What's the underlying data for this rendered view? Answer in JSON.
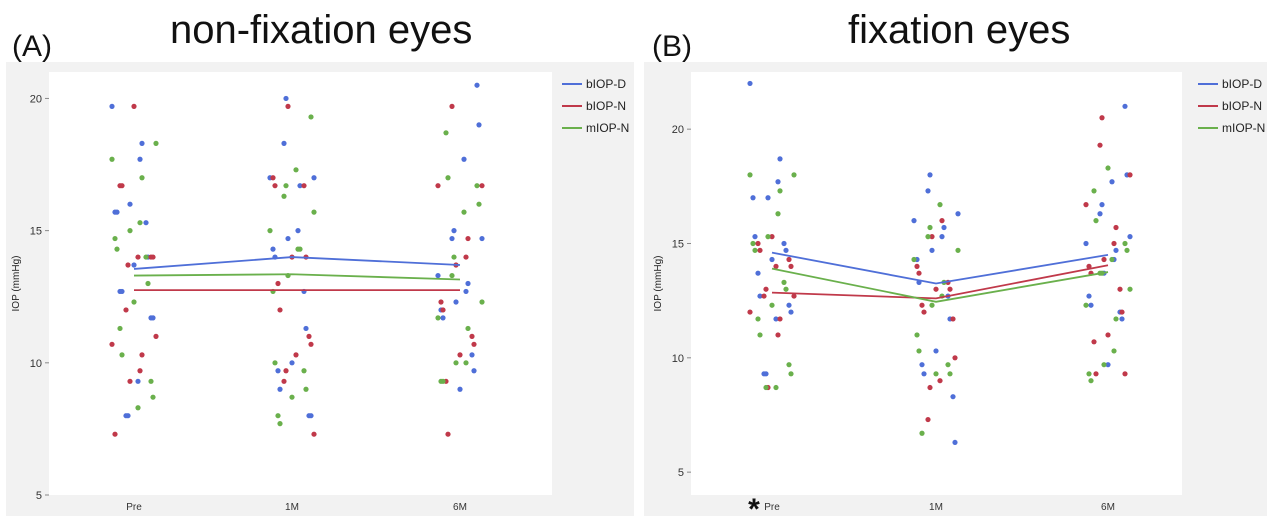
{
  "colors": {
    "blue": "#4f6fd8",
    "red": "#c0394a",
    "green": "#6ab04c",
    "frame": "#f2f2f2"
  },
  "panels": [
    {
      "letter": "(A)",
      "title": "non-fixation eyes"
    },
    {
      "letter": "(B)",
      "title": "fixation eyes",
      "marker": "*"
    }
  ],
  "chart_data": [
    {
      "type": "scatter",
      "title": "non-fixation eyes",
      "ylabel": "IOP (mmHg)",
      "categories": [
        "Pre",
        "1M",
        "6M"
      ],
      "ylim": [
        5,
        21
      ],
      "yticks": [
        5,
        10,
        15,
        20
      ],
      "legend_position": "top-right",
      "series": [
        {
          "name": "bIOP-D",
          "color": "#4f6fd8",
          "means": [
            13.55,
            14.0,
            13.7
          ],
          "points": [
            [
              0,
              19.7
            ],
            [
              0,
              18.3
            ],
            [
              0,
              17.7
            ],
            [
              0,
              16.0
            ],
            [
              0,
              15.7
            ],
            [
              0,
              15.7
            ],
            [
              0,
              15.3
            ],
            [
              0,
              14.0
            ],
            [
              0,
              13.7
            ],
            [
              0,
              12.7
            ],
            [
              0,
              12.7
            ],
            [
              0,
              11.7
            ],
            [
              0,
              11.7
            ],
            [
              0,
              9.3
            ],
            [
              0,
              8.0
            ],
            [
              0,
              8.0
            ],
            [
              1,
              20.0
            ],
            [
              1,
              18.3
            ],
            [
              1,
              17.0
            ],
            [
              1,
              17.0
            ],
            [
              1,
              16.7
            ],
            [
              1,
              15.0
            ],
            [
              1,
              14.7
            ],
            [
              1,
              14.3
            ],
            [
              1,
              14.0
            ],
            [
              1,
              12.7
            ],
            [
              1,
              11.3
            ],
            [
              1,
              10.0
            ],
            [
              1,
              9.7
            ],
            [
              1,
              9.0
            ],
            [
              1,
              8.0
            ],
            [
              1,
              8.0
            ],
            [
              2,
              20.5
            ],
            [
              2,
              19.0
            ],
            [
              2,
              17.7
            ],
            [
              2,
              15.0
            ],
            [
              2,
              14.7
            ],
            [
              2,
              14.7
            ],
            [
              2,
              13.3
            ],
            [
              2,
              13.0
            ],
            [
              2,
              12.7
            ],
            [
              2,
              12.3
            ],
            [
              2,
              12.0
            ],
            [
              2,
              11.7
            ],
            [
              2,
              10.3
            ],
            [
              2,
              9.7
            ],
            [
              2,
              9.0
            ]
          ]
        },
        {
          "name": "bIOP-N",
          "color": "#c0394a",
          "means": [
            12.75,
            12.75,
            12.75
          ],
          "points": [
            [
              0,
              19.7
            ],
            [
              0,
              16.7
            ],
            [
              0,
              16.7
            ],
            [
              0,
              14.0
            ],
            [
              0,
              14.0
            ],
            [
              0,
              14.0
            ],
            [
              0,
              13.7
            ],
            [
              0,
              12.0
            ],
            [
              0,
              11.0
            ],
            [
              0,
              10.7
            ],
            [
              0,
              10.3
            ],
            [
              0,
              9.7
            ],
            [
              0,
              9.3
            ],
            [
              0,
              7.3
            ],
            [
              1,
              19.7
            ],
            [
              1,
              17.0
            ],
            [
              1,
              16.7
            ],
            [
              1,
              16.7
            ],
            [
              1,
              14.0
            ],
            [
              1,
              14.0
            ],
            [
              1,
              13.0
            ],
            [
              1,
              12.0
            ],
            [
              1,
              11.0
            ],
            [
              1,
              10.7
            ],
            [
              1,
              10.3
            ],
            [
              1,
              9.7
            ],
            [
              1,
              9.3
            ],
            [
              1,
              7.3
            ],
            [
              2,
              19.7
            ],
            [
              2,
              16.7
            ],
            [
              2,
              16.7
            ],
            [
              2,
              14.7
            ],
            [
              2,
              14.0
            ],
            [
              2,
              13.7
            ],
            [
              2,
              12.3
            ],
            [
              2,
              12.0
            ],
            [
              2,
              11.0
            ],
            [
              2,
              10.7
            ],
            [
              2,
              10.3
            ],
            [
              2,
              9.3
            ],
            [
              2,
              7.3
            ]
          ]
        },
        {
          "name": "mIOP-N",
          "color": "#6ab04c",
          "means": [
            13.3,
            13.35,
            13.15
          ],
          "points": [
            [
              0,
              18.3
            ],
            [
              0,
              17.7
            ],
            [
              0,
              17.0
            ],
            [
              0,
              15.3
            ],
            [
              0,
              15.0
            ],
            [
              0,
              14.7
            ],
            [
              0,
              14.3
            ],
            [
              0,
              14.0
            ],
            [
              0,
              13.0
            ],
            [
              0,
              12.3
            ],
            [
              0,
              11.3
            ],
            [
              0,
              10.3
            ],
            [
              0,
              9.3
            ],
            [
              0,
              8.7
            ],
            [
              0,
              8.3
            ],
            [
              1,
              19.3
            ],
            [
              1,
              17.3
            ],
            [
              1,
              16.7
            ],
            [
              1,
              16.3
            ],
            [
              1,
              15.7
            ],
            [
              1,
              15.0
            ],
            [
              1,
              14.3
            ],
            [
              1,
              14.3
            ],
            [
              1,
              13.3
            ],
            [
              1,
              12.7
            ],
            [
              1,
              10.0
            ],
            [
              1,
              9.7
            ],
            [
              1,
              9.0
            ],
            [
              1,
              8.7
            ],
            [
              1,
              8.0
            ],
            [
              1,
              7.7
            ],
            [
              2,
              18.7
            ],
            [
              2,
              17.0
            ],
            [
              2,
              16.7
            ],
            [
              2,
              16.0
            ],
            [
              2,
              15.7
            ],
            [
              2,
              14.0
            ],
            [
              2,
              13.3
            ],
            [
              2,
              12.3
            ],
            [
              2,
              11.7
            ],
            [
              2,
              11.3
            ],
            [
              2,
              10.0
            ],
            [
              2,
              10.0
            ],
            [
              2,
              9.3
            ],
            [
              2,
              9.3
            ]
          ]
        }
      ]
    },
    {
      "type": "scatter",
      "title": "fixation eyes",
      "ylabel": "IOP (mmHg)",
      "categories": [
        "Pre",
        "1M",
        "6M"
      ],
      "ylim": [
        4,
        22.5
      ],
      "yticks": [
        5,
        10,
        15,
        20
      ],
      "legend_position": "top-right",
      "series": [
        {
          "name": "bIOP-D",
          "color": "#4f6fd8",
          "means": [
            14.6,
            13.25,
            14.5
          ],
          "points": [
            [
              0,
              22.0
            ],
            [
              0,
              18.7
            ],
            [
              0,
              17.7
            ],
            [
              0,
              17.0
            ],
            [
              0,
              17.0
            ],
            [
              0,
              15.3
            ],
            [
              0,
              15.0
            ],
            [
              0,
              14.7
            ],
            [
              0,
              14.3
            ],
            [
              0,
              13.7
            ],
            [
              0,
              12.7
            ],
            [
              0,
              12.3
            ],
            [
              0,
              12.0
            ],
            [
              0,
              11.7
            ],
            [
              0,
              9.3
            ],
            [
              0,
              9.3
            ],
            [
              1,
              18.0
            ],
            [
              1,
              17.3
            ],
            [
              1,
              16.3
            ],
            [
              1,
              16.0
            ],
            [
              1,
              15.7
            ],
            [
              1,
              15.3
            ],
            [
              1,
              14.7
            ],
            [
              1,
              14.3
            ],
            [
              1,
              13.3
            ],
            [
              1,
              12.7
            ],
            [
              1,
              11.7
            ],
            [
              1,
              10.3
            ],
            [
              1,
              9.7
            ],
            [
              1,
              9.3
            ],
            [
              1,
              8.3
            ],
            [
              1,
              6.3
            ],
            [
              2,
              21.0
            ],
            [
              2,
              18.0
            ],
            [
              2,
              17.7
            ],
            [
              2,
              16.7
            ],
            [
              2,
              16.3
            ],
            [
              2,
              15.3
            ],
            [
              2,
              15.0
            ],
            [
              2,
              14.7
            ],
            [
              2,
              14.3
            ],
            [
              2,
              13.7
            ],
            [
              2,
              12.7
            ],
            [
              2,
              12.3
            ],
            [
              2,
              12.0
            ],
            [
              2,
              11.7
            ],
            [
              2,
              9.7
            ]
          ]
        },
        {
          "name": "bIOP-N",
          "color": "#c0394a",
          "means": [
            12.85,
            12.6,
            14.05
          ],
          "points": [
            [
              0,
              15.3
            ],
            [
              0,
              15.0
            ],
            [
              0,
              14.7
            ],
            [
              0,
              14.3
            ],
            [
              0,
              14.0
            ],
            [
              0,
              14.0
            ],
            [
              0,
              13.0
            ],
            [
              0,
              12.7
            ],
            [
              0,
              12.7
            ],
            [
              0,
              12.0
            ],
            [
              0,
              11.7
            ],
            [
              0,
              11.0
            ],
            [
              0,
              8.7
            ],
            [
              1,
              16.0
            ],
            [
              1,
              15.3
            ],
            [
              1,
              14.0
            ],
            [
              1,
              13.7
            ],
            [
              1,
              13.3
            ],
            [
              1,
              13.0
            ],
            [
              1,
              13.0
            ],
            [
              1,
              12.3
            ],
            [
              1,
              12.0
            ],
            [
              1,
              11.7
            ],
            [
              1,
              10.0
            ],
            [
              1,
              9.0
            ],
            [
              1,
              8.7
            ],
            [
              1,
              7.3
            ],
            [
              2,
              20.5
            ],
            [
              2,
              19.3
            ],
            [
              2,
              18.0
            ],
            [
              2,
              16.7
            ],
            [
              2,
              15.7
            ],
            [
              2,
              15.0
            ],
            [
              2,
              14.3
            ],
            [
              2,
              14.0
            ],
            [
              2,
              13.7
            ],
            [
              2,
              13.0
            ],
            [
              2,
              12.0
            ],
            [
              2,
              11.0
            ],
            [
              2,
              10.7
            ],
            [
              2,
              9.3
            ],
            [
              2,
              9.3
            ]
          ]
        },
        {
          "name": "mIOP-N",
          "color": "#6ab04c",
          "means": [
            13.9,
            12.45,
            13.75
          ],
          "points": [
            [
              0,
              18.0
            ],
            [
              0,
              18.0
            ],
            [
              0,
              17.3
            ],
            [
              0,
              16.3
            ],
            [
              0,
              15.3
            ],
            [
              0,
              15.0
            ],
            [
              0,
              14.7
            ],
            [
              0,
              13.3
            ],
            [
              0,
              13.0
            ],
            [
              0,
              12.3
            ],
            [
              0,
              11.7
            ],
            [
              0,
              11.0
            ],
            [
              0,
              9.7
            ],
            [
              0,
              9.3
            ],
            [
              0,
              8.7
            ],
            [
              0,
              8.7
            ],
            [
              1,
              16.7
            ],
            [
              1,
              15.7
            ],
            [
              1,
              15.3
            ],
            [
              1,
              14.7
            ],
            [
              1,
              14.3
            ],
            [
              1,
              13.3
            ],
            [
              1,
              12.7
            ],
            [
              1,
              12.3
            ],
            [
              1,
              11.0
            ],
            [
              1,
              10.3
            ],
            [
              1,
              9.7
            ],
            [
              1,
              9.3
            ],
            [
              1,
              9.3
            ],
            [
              1,
              6.7
            ],
            [
              2,
              18.3
            ],
            [
              2,
              17.3
            ],
            [
              2,
              16.0
            ],
            [
              2,
              15.0
            ],
            [
              2,
              14.7
            ],
            [
              2,
              14.3
            ],
            [
              2,
              13.7
            ],
            [
              2,
              13.7
            ],
            [
              2,
              13.0
            ],
            [
              2,
              12.3
            ],
            [
              2,
              11.7
            ],
            [
              2,
              10.3
            ],
            [
              2,
              9.7
            ],
            [
              2,
              9.3
            ],
            [
              2,
              9.0
            ]
          ]
        }
      ]
    }
  ]
}
